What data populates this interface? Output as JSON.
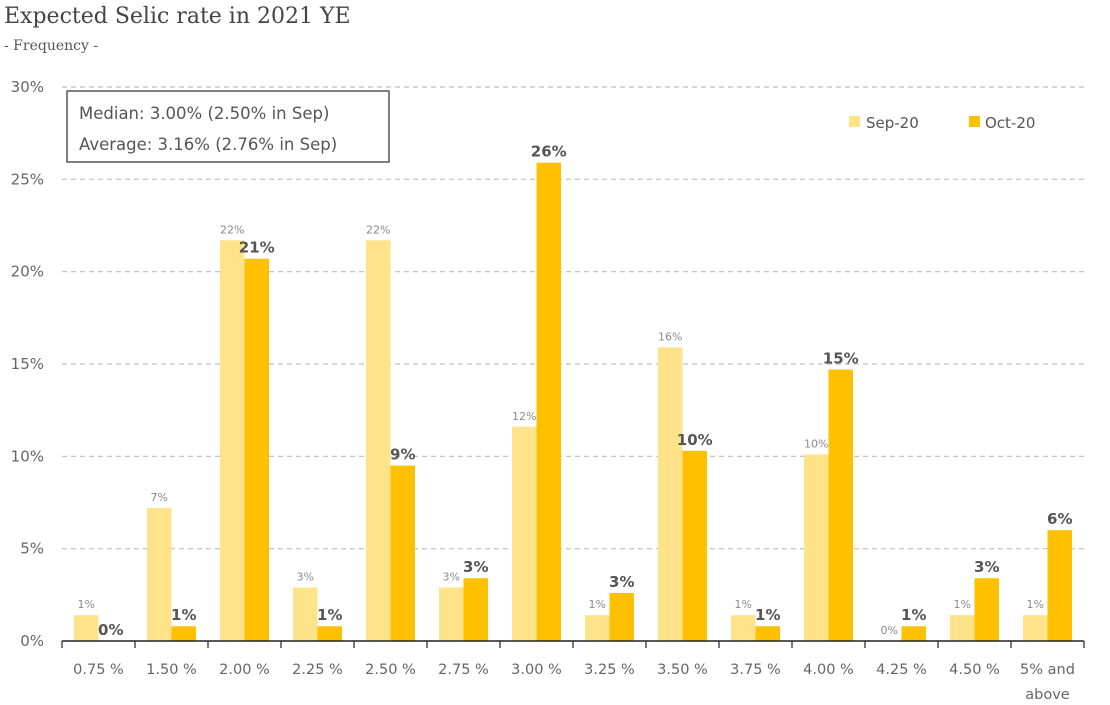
{
  "chart_data": {
    "type": "bar",
    "title": "Expected Selic rate in 2021 YE",
    "subtitle": "- Frequency -",
    "categories": [
      "0.75 %",
      "1.50 %",
      "2.00 %",
      "2.25 %",
      "2.50 %",
      "2.75 %",
      "3.00 %",
      "3.25 %",
      "3.50 %",
      "3.75 %",
      "4.00 %",
      "4.25 %",
      "4.50 %",
      "5% and above"
    ],
    "series": [
      {
        "name": "Sep-20",
        "color": "#ffe38b",
        "values": [
          1.4,
          7.2,
          21.7,
          2.9,
          21.7,
          2.9,
          11.6,
          1.4,
          15.9,
          1.4,
          10.1,
          0,
          1.4,
          1.4
        ],
        "labels": [
          "1%",
          "7%",
          "22%",
          "3%",
          "22%",
          "3%",
          "12%",
          "1%",
          "16%",
          "1%",
          "10%",
          "0%",
          "1%",
          "1%"
        ]
      },
      {
        "name": "Oct-20",
        "color": "#ffc000",
        "values": [
          0,
          0.8,
          20.7,
          0.8,
          9.5,
          3.4,
          25.9,
          2.6,
          10.3,
          0.8,
          14.7,
          0.8,
          3.4,
          6.0
        ],
        "labels": [
          "0%",
          "1%",
          "21%",
          "1%",
          "9%",
          "3%",
          "26%",
          "3%",
          "10%",
          "1%",
          "15%",
          "1%",
          "3%",
          "6%"
        ]
      }
    ],
    "ylim": [
      0,
      30
    ],
    "yticks": [
      "0%",
      "5%",
      "10%",
      "15%",
      "20%",
      "25%",
      "30%"
    ],
    "ytick_values": [
      0,
      5,
      10,
      15,
      20,
      25,
      30
    ],
    "grid": true,
    "legend_position": "top-right",
    "annotation": [
      "Median: 3.00% (2.50% in Sep)",
      "Average: 3.16% (2.76% in Sep)"
    ]
  }
}
